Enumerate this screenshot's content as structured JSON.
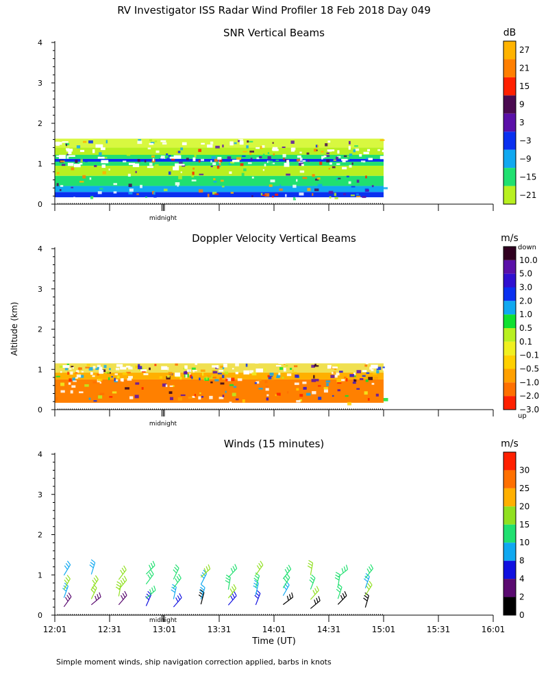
{
  "figure": {
    "title": "RV Investigator ISS Radar Wind Profiler  18 Feb 2018 Day 049",
    "ylabel": "Altitude (km)",
    "xlabel": "Time (UT)",
    "footnote": "Simple moment winds, ship navigation correction applied, barbs in knots",
    "midnight_label": "midnight"
  },
  "chart_data": [
    {
      "type": "heatmap",
      "title": "SNR Vertical Beams",
      "ylim": [
        0,
        4
      ],
      "yticks": [
        "0",
        "1",
        "2",
        "3",
        "4"
      ],
      "colorbar": {
        "unit": "dB",
        "labels": [
          "27",
          "21",
          "15",
          "9",
          "3",
          "−3",
          "−9",
          "−15",
          "−21"
        ],
        "colors": [
          "#ffb300",
          "#ff7f00",
          "#ff2000",
          "#4a0a50",
          "#5a10a8",
          "#0a30f0",
          "#10a8f0",
          "#20e070",
          "#b8f020"
        ]
      },
      "bands": [
        {
          "y0": 0.17,
          "y1": 0.3,
          "color": "#0a30f0"
        },
        {
          "y0": 0.3,
          "y1": 0.45,
          "color": "#10a8f0"
        },
        {
          "y0": 0.45,
          "y1": 0.7,
          "color": "#20e070"
        },
        {
          "y0": 0.7,
          "y1": 0.95,
          "color": "#b8f020"
        },
        {
          "y0": 0.95,
          "y1": 1.05,
          "color": "#20e070"
        },
        {
          "y0": 1.05,
          "y1": 1.12,
          "color": "#0a30f0"
        },
        {
          "y0": 1.12,
          "y1": 1.22,
          "color": "#20e070"
        },
        {
          "y0": 1.22,
          "y1": 1.4,
          "color": "#b8f020"
        },
        {
          "y0": 1.4,
          "y1": 1.62,
          "color": "#d8f840"
        }
      ]
    },
    {
      "type": "heatmap",
      "title": "Doppler Velocity Vertical Beams",
      "ylim": [
        0,
        4
      ],
      "yticks": [
        "0",
        "1",
        "2",
        "3",
        "4"
      ],
      "colorbar": {
        "unit": "m/s",
        "top_label": "down",
        "bottom_label": "up",
        "labels": [
          "10.0",
          "5.0",
          "3.0",
          "2.0",
          "1.0",
          "0.5",
          "0.1",
          "−0.1",
          "−0.5",
          "−1.0",
          "−2.0",
          "−3.0"
        ],
        "colors": [
          "#300020",
          "#5a10a8",
          "#3010d0",
          "#0a30f0",
          "#10a8f0",
          "#10e030",
          "#b8f020",
          "#f0f020",
          "#ffd000",
          "#ffa000",
          "#ff7000",
          "#ff2000"
        ]
      },
      "bands": [
        {
          "y0": 0.17,
          "y1": 0.75,
          "color": "#ff8000"
        },
        {
          "y0": 0.75,
          "y1": 0.92,
          "color": "#ffb000"
        },
        {
          "y0": 0.92,
          "y1": 1.15,
          "color": "#f0e050"
        }
      ]
    },
    {
      "type": "scatter",
      "title": "Winds (15 minutes)",
      "ylim": [
        0,
        4
      ],
      "yticks": [
        "0",
        "1",
        "2",
        "3",
        "4"
      ],
      "xticks": [
        "12:01",
        "12:31",
        "13:01",
        "13:31",
        "14:01",
        "14:31",
        "15:01",
        "15:31",
        "16:01"
      ],
      "colorbar": {
        "unit": "m/s",
        "labels": [
          "30",
          "25",
          "20",
          "15",
          "10",
          "8",
          "4",
          "2",
          "0"
        ],
        "colors": [
          "#ff2000",
          "#ff7000",
          "#ffb000",
          "#90e020",
          "#20e070",
          "#10a8f0",
          "#1010e0",
          "#5a0a70",
          "#000000"
        ]
      },
      "barb_times": [
        "12:06",
        "12:21",
        "12:36",
        "12:51",
        "13:06",
        "13:21",
        "13:36",
        "13:51",
        "14:06",
        "14:21",
        "14:36",
        "14:51"
      ]
    }
  ]
}
